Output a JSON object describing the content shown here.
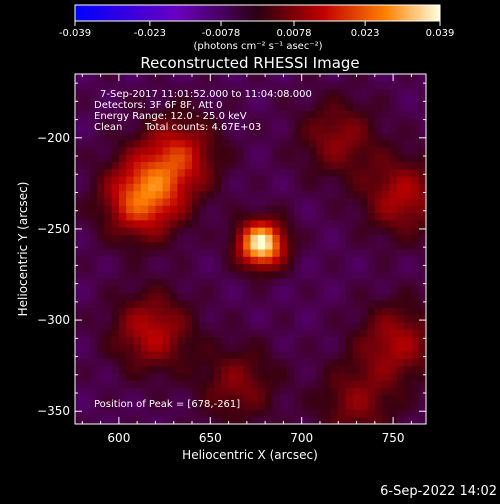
{
  "colorbar": {
    "tick_labels": [
      "-0.039",
      "-0.023",
      "-0.0078",
      "0.0078",
      "0.023",
      "0.039"
    ],
    "unit_label": "(photons cm⁻² s⁻¹ asec⁻²)",
    "range": [
      -0.039,
      0.039
    ]
  },
  "title": "Reconstructed RHESSI Image",
  "info": {
    "line1": "7-Sep-2017 11:01:52.000 to 11:04:08.000",
    "line2": "Detectors: 3F 6F 8F, Att 0",
    "line3": "Energy Range: 12.0 - 25.0 keV",
    "line4_left": "Clean",
    "line4_right": "Total counts: 4.67E+03",
    "peak": "Position of Peak = [678,-261]"
  },
  "footer_timestamp": "6-Sep-2022 14:02",
  "chart_data": {
    "type": "heatmap",
    "title": "Reconstructed RHESSI Image",
    "xlabel": "Heliocentric X (arcsec)",
    "ylabel": "Heliocentric Y (arcsec)",
    "xlim": [
      576,
      768
    ],
    "ylim": [
      -357,
      -165
    ],
    "x_ticks": [
      600,
      650,
      700,
      750
    ],
    "y_ticks": [
      -200,
      -250,
      -300,
      -350
    ],
    "peak_position": [
      678,
      -261
    ],
    "color_range": [
      -0.039,
      0.039
    ],
    "colormap": [
      "#0000ff",
      "#6a00c0",
      "#3a0010",
      "#c00000",
      "#ff8000",
      "#ffffd0"
    ],
    "sources": [
      {
        "x": 678,
        "y": -258,
        "value": 0.039
      },
      {
        "x": 613,
        "y": -233,
        "value": 0.024
      },
      {
        "x": 632,
        "y": -210,
        "value": 0.016
      },
      {
        "x": 618,
        "y": -306,
        "value": 0.013
      },
      {
        "x": 755,
        "y": -232,
        "value": 0.012
      },
      {
        "x": 752,
        "y": -312,
        "value": 0.011
      },
      {
        "x": 720,
        "y": -200,
        "value": 0.008
      },
      {
        "x": 665,
        "y": -335,
        "value": 0.007
      },
      {
        "x": 730,
        "y": -345,
        "value": 0.007
      }
    ]
  }
}
